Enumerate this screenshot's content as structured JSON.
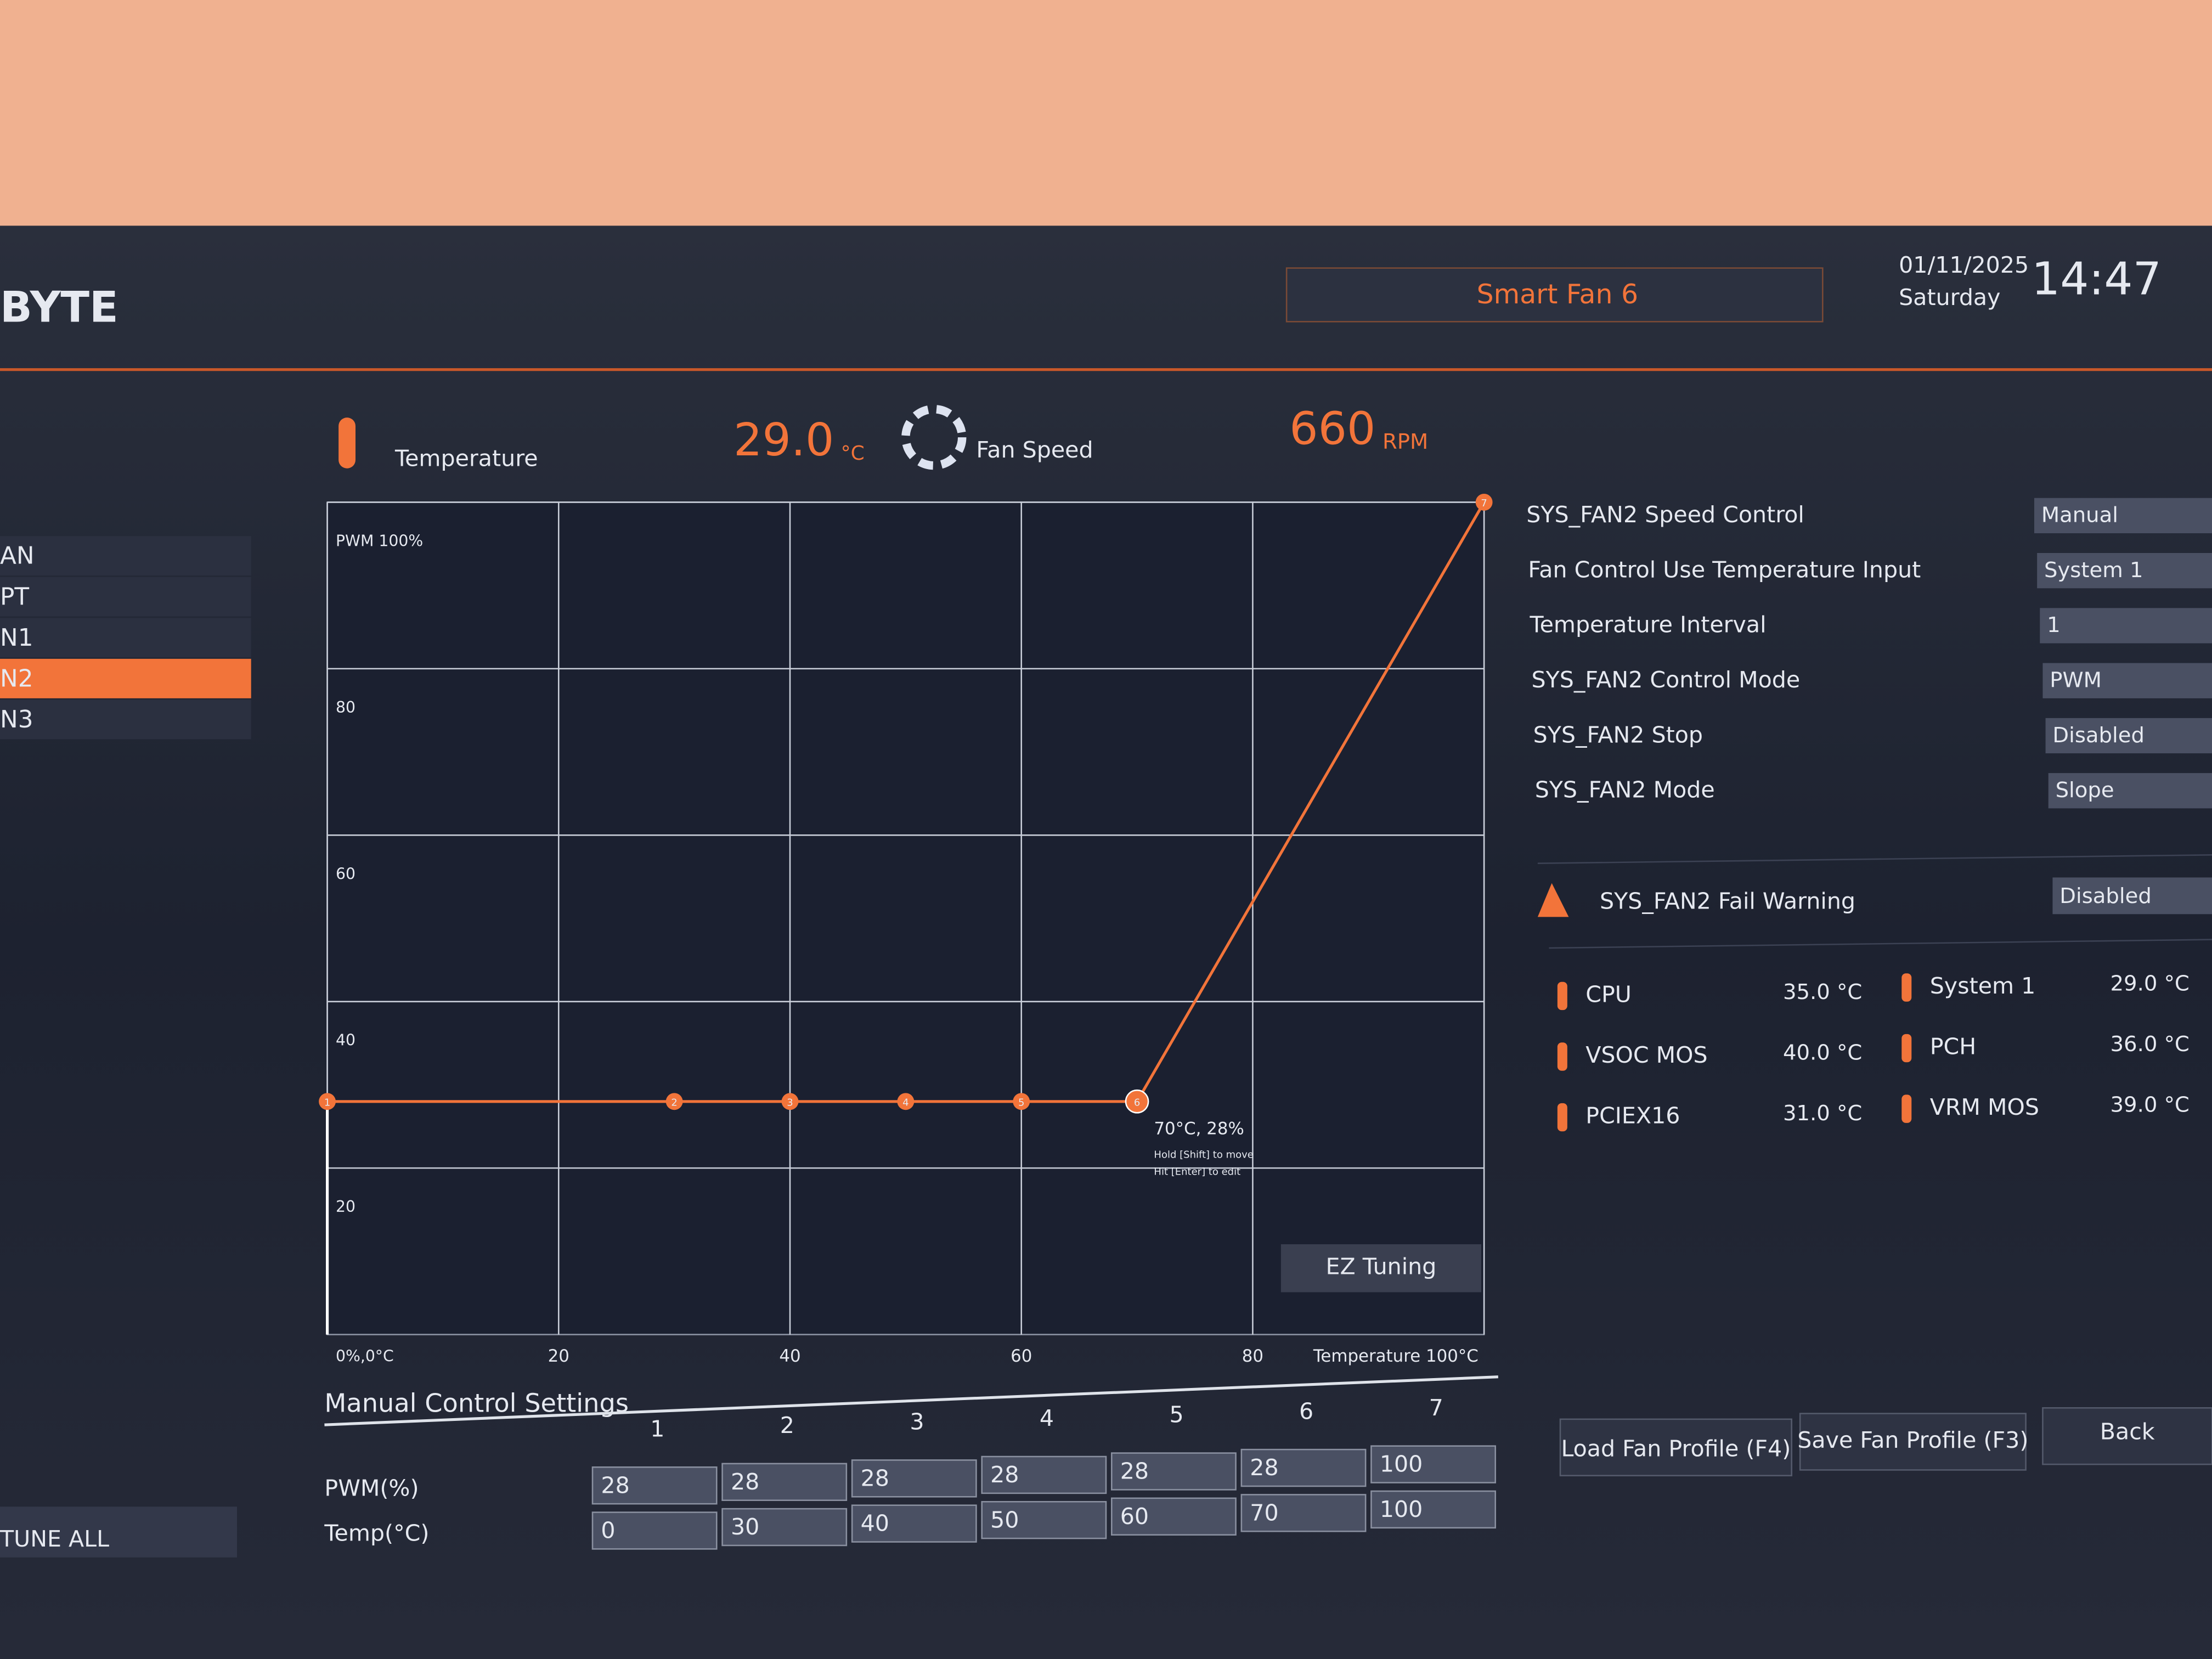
{
  "header": {
    "logo": "BYTE",
    "title": "Smart Fan 6",
    "date": "01/11/2025",
    "day": "Saturday",
    "time": "14:47"
  },
  "sidebar": {
    "items": [
      "AN",
      "PT",
      "N1",
      "N2",
      "N3"
    ],
    "selected": 3,
    "button": "TUNE ALL"
  },
  "status": {
    "temperature_label": "Temperature",
    "temperature": "29.0",
    "temperature_unit": "°C",
    "fan_label": "Fan Speed",
    "fan_speed": "660",
    "fan_unit": "RPM"
  },
  "fan_curve": {
    "xlim": [
      0,
      100
    ],
    "ylim": [
      0,
      100
    ],
    "xticks": [
      {
        "value": 0,
        "label": "0%,0°C"
      },
      20,
      40,
      60,
      80,
      {
        "value": 100,
        "label": "Temperature 100°C"
      }
    ],
    "yticks": [
      20,
      40,
      60,
      80,
      {
        "value": 100,
        "label": "PWM 100%"
      }
    ],
    "color": "#f2743a",
    "tooltip": {
      "text": "70°C, 28%",
      "hint1": "Hold [Shift] to move",
      "hint2": "Hit [Enter] to edit"
    },
    "button": "EZ Tuning"
  },
  "manual": {
    "title": "Manual Control Settings",
    "columns": [
      "1",
      "2",
      "3",
      "4",
      "5",
      "6",
      "7"
    ],
    "rows": [
      {
        "label": "PWM(%)",
        "values": [
          28,
          28,
          28,
          28,
          28,
          28,
          100
        ]
      },
      {
        "label": "Temp(°C)",
        "values": [
          0,
          30,
          40,
          50,
          60,
          70,
          100
        ]
      }
    ]
  },
  "settings": [
    {
      "label": "SYS_FAN2 Speed Control",
      "value": "Manual"
    },
    {
      "label": "Fan Control Use Temperature Input",
      "value": "System 1"
    },
    {
      "label": "Temperature Interval",
      "value": "1"
    },
    {
      "label": "SYS_FAN2 Control Mode",
      "value": "PWM"
    },
    {
      "label": "SYS_FAN2 Stop",
      "value": "Disabled"
    },
    {
      "label": "SYS_FAN2 Mode",
      "value": "Slope"
    }
  ],
  "warning": {
    "label": "SYS_FAN2 Fail Warning",
    "value": "Disabled"
  },
  "sensors": [
    {
      "name": "CPU",
      "value": "35.0 °C"
    },
    {
      "name": "VSOC MOS",
      "value": "40.0 °C"
    },
    {
      "name": "PCIEX16",
      "value": "31.0 °C"
    },
    {
      "name": "System 1",
      "value": "29.0 °C"
    },
    {
      "name": "PCH",
      "value": "36.0 °C"
    },
    {
      "name": "VRM MOS",
      "value": "39.0 °C"
    }
  ],
  "buttons": [
    "Load Fan Profile (F4)",
    "Save Fan Profile (F3)",
    "Back"
  ]
}
